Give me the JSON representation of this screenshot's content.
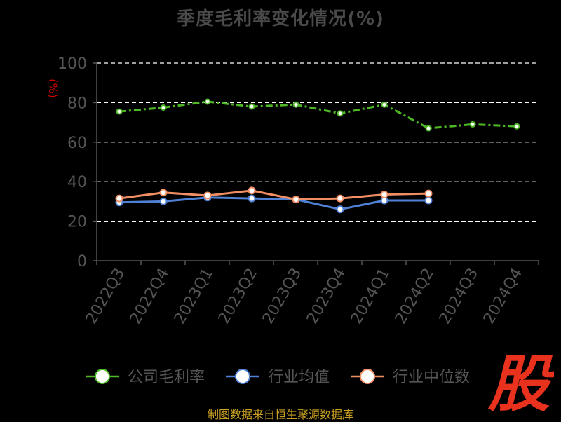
{
  "chart_data": {
    "type": "line",
    "title": "季度毛利率变化情况(%)",
    "ylabel": "(%)",
    "xlabel": "",
    "categories": [
      "2022Q3",
      "2022Q4",
      "2023Q1",
      "2023Q2",
      "2023Q3",
      "2023Q4",
      "2024Q1",
      "2024Q2",
      "2024Q3",
      "2024Q4"
    ],
    "ylim": [
      0,
      100
    ],
    "yticks": [
      0,
      20,
      40,
      60,
      80,
      100
    ],
    "grid": true,
    "legend_position": "bottom",
    "series": [
      {
        "name": "公司毛利率",
        "color": "#4fb827",
        "values": [
          75.5,
          77.5,
          80.5,
          78,
          79,
          74.5,
          79,
          67,
          69,
          68
        ]
      },
      {
        "name": "行业均值",
        "color": "#4f82d7",
        "values": [
          29.5,
          30,
          32,
          31.5,
          31,
          26,
          30.5,
          30.5,
          null,
          null
        ]
      },
      {
        "name": "行业中位数",
        "color": "#f28e64",
        "values": [
          31.5,
          34.5,
          33,
          35.5,
          31,
          31.5,
          33.5,
          34,
          null,
          null
        ]
      }
    ]
  },
  "footer": {
    "source": "制图数据来自恒生聚源数据库"
  },
  "watermark": {
    "text": "股",
    "color": "#e8321e"
  }
}
